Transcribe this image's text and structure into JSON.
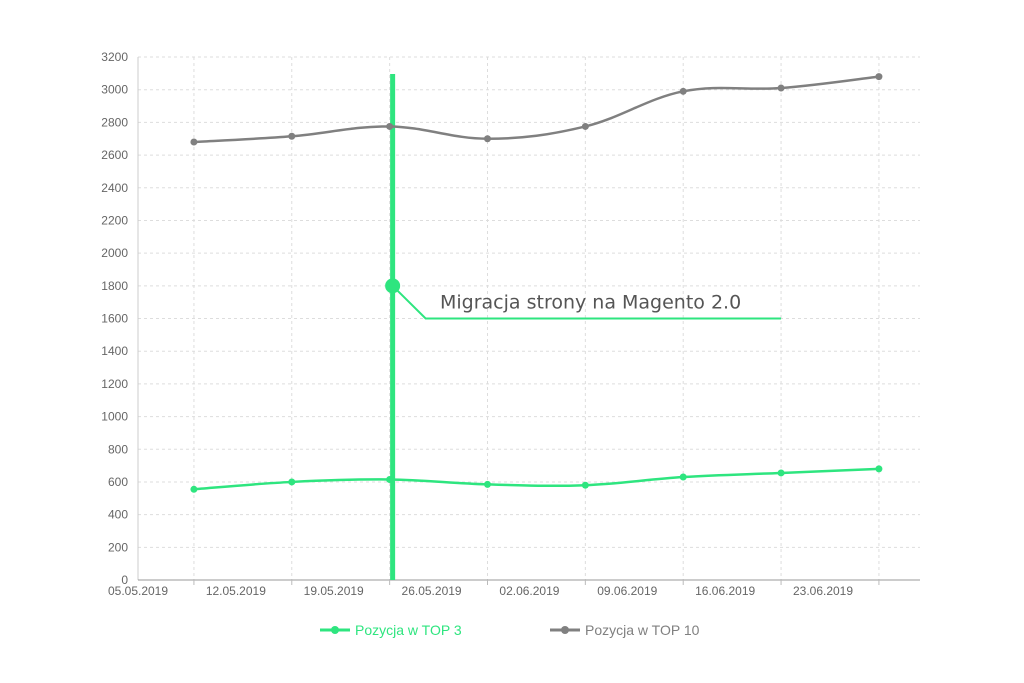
{
  "chart_data": {
    "type": "line",
    "title": "",
    "xlabel": "",
    "ylabel": "",
    "ylim": [
      0,
      3200
    ],
    "y_ticks": [
      "0",
      "200",
      "400",
      "600",
      "800",
      "1000",
      "1200",
      "1400",
      "1600",
      "1800",
      "2000",
      "2200",
      "2400",
      "2600",
      "2800",
      "3000",
      "3200"
    ],
    "x_ticks": [
      "05.05.2019",
      "12.05.2019",
      "19.05.2019",
      "26.05.2019",
      "02.06.2019",
      "09.06.2019",
      "16.06.2019",
      "23.06.2019"
    ],
    "grid": true,
    "legend_placement": "bottom-center",
    "series": [
      {
        "name": "Pozycja w TOP 3",
        "color": "#2ee57f",
        "points": [
          {
            "x": "2019-05-09",
            "y": 555
          },
          {
            "x": "2019-05-16",
            "y": 600
          },
          {
            "x": "2019-05-23",
            "y": 615
          },
          {
            "x": "2019-05-30",
            "y": 585
          },
          {
            "x": "2019-06-06",
            "y": 580
          },
          {
            "x": "2019-06-13",
            "y": 630
          },
          {
            "x": "2019-06-20",
            "y": 655
          },
          {
            "x": "2019-06-27",
            "y": 680
          }
        ]
      },
      {
        "name": "Pozycja w TOP 10",
        "color": "#808080",
        "points": [
          {
            "x": "2019-05-09",
            "y": 2680
          },
          {
            "x": "2019-05-16",
            "y": 2715
          },
          {
            "x": "2019-05-23",
            "y": 2775
          },
          {
            "x": "2019-05-30",
            "y": 2700
          },
          {
            "x": "2019-06-06",
            "y": 2775
          },
          {
            "x": "2019-06-13",
            "y": 2990
          },
          {
            "x": "2019-06-20",
            "y": 3010
          },
          {
            "x": "2019-06-27",
            "y": 3080
          }
        ]
      }
    ],
    "annotation": {
      "text": "Migracja strony na Magento 2.0",
      "color": "#2ee57f",
      "marker_x": "2019-05-23",
      "marker_y": 1800,
      "label_y": 1600,
      "label_x_end": "2019-06-20"
    }
  }
}
